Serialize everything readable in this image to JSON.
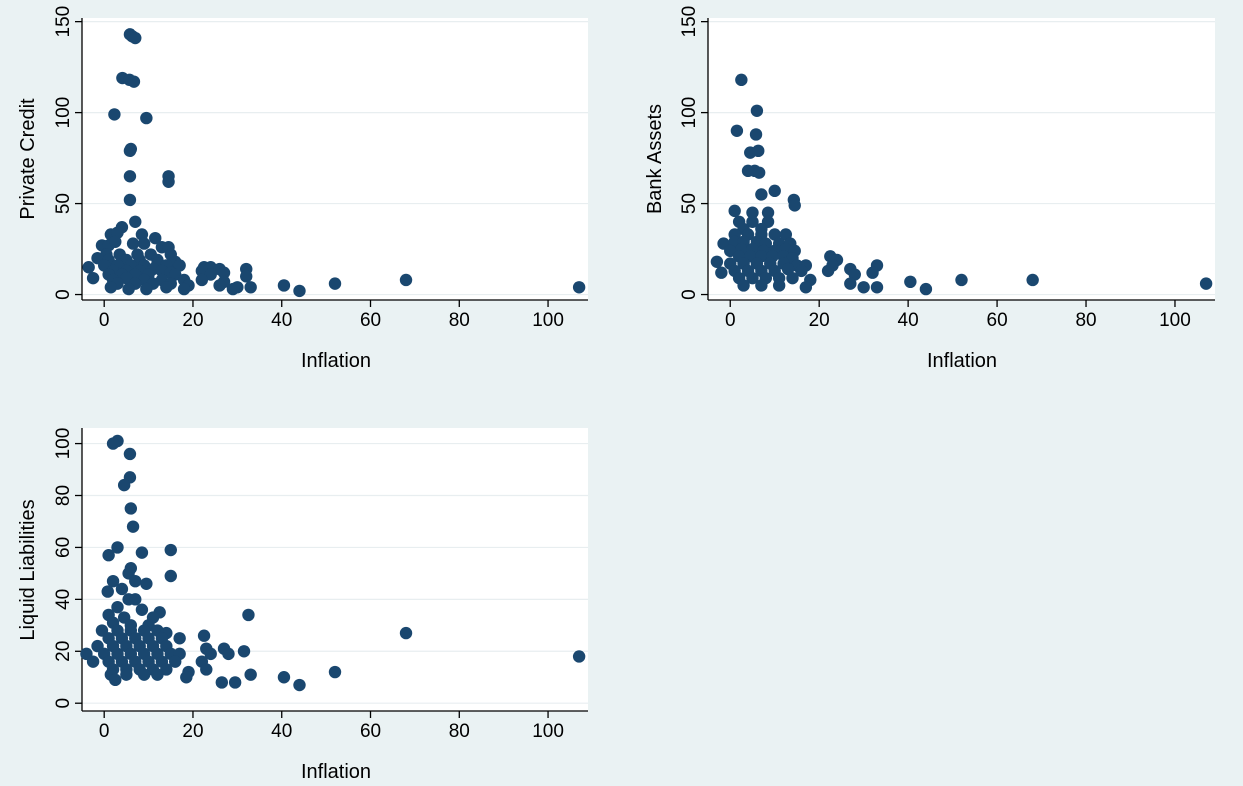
{
  "colors": {
    "background": "#eaf2f3",
    "plot_area": "#ffffff",
    "marker": "#1a476f",
    "grid": "#e8eef0"
  },
  "chart_data": [
    {
      "type": "scatter",
      "title": "",
      "xlabel": "Inflation",
      "ylabel": "Private Credit",
      "xlim": [
        -5,
        109
      ],
      "ylim": [
        -3,
        152
      ],
      "xticks": [
        0,
        20,
        40,
        60,
        80,
        100
      ],
      "yticks": [
        0,
        50,
        100,
        150
      ],
      "grid": true,
      "points": [
        [
          5.8,
          143
        ],
        [
          6.3,
          142
        ],
        [
          7,
          141
        ],
        [
          4.1,
          119
        ],
        [
          5.7,
          118
        ],
        [
          6.7,
          117
        ],
        [
          2.3,
          99
        ],
        [
          9.5,
          97
        ],
        [
          6,
          80
        ],
        [
          5.8,
          79
        ],
        [
          5.8,
          65
        ],
        [
          14.5,
          65
        ],
        [
          14.5,
          62
        ],
        [
          5.8,
          52
        ],
        [
          7,
          40
        ],
        [
          4,
          37
        ],
        [
          1.5,
          33
        ],
        [
          3,
          34
        ],
        [
          8.5,
          33
        ],
        [
          11.5,
          31
        ],
        [
          -0.5,
          27
        ],
        [
          1,
          27
        ],
        [
          2.5,
          29
        ],
        [
          6.5,
          28
        ],
        [
          9,
          28
        ],
        [
          13,
          26
        ],
        [
          14.5,
          26
        ],
        [
          0.5,
          22
        ],
        [
          3.5,
          22
        ],
        [
          7.5,
          22
        ],
        [
          10.5,
          22
        ],
        [
          15,
          22
        ],
        [
          -1.5,
          20
        ],
        [
          1,
          19
        ],
        [
          5,
          19
        ],
        [
          8,
          19
        ],
        [
          12,
          19
        ],
        [
          16,
          18
        ],
        [
          0,
          16
        ],
        [
          3,
          16
        ],
        [
          6,
          16
        ],
        [
          9,
          16
        ],
        [
          12,
          17
        ],
        [
          14,
          16
        ],
        [
          17,
          16
        ],
        [
          22.5,
          15
        ],
        [
          24,
          15
        ],
        [
          26,
          14
        ],
        [
          2,
          13
        ],
        [
          5,
          13
        ],
        [
          8,
          13
        ],
        [
          11,
          14
        ],
        [
          13,
          13
        ],
        [
          15,
          12
        ],
        [
          22,
          13
        ],
        [
          27,
          12
        ],
        [
          32,
          14
        ],
        [
          -3.5,
          15
        ],
        [
          1,
          11
        ],
        [
          4,
          11
        ],
        [
          7,
          11
        ],
        [
          10,
          11
        ],
        [
          16,
          11
        ],
        [
          24,
          11
        ],
        [
          32,
          10
        ],
        [
          -2.5,
          9
        ],
        [
          2,
          8
        ],
        [
          5,
          9
        ],
        [
          9,
          8
        ],
        [
          13,
          8
        ],
        [
          18,
          8
        ],
        [
          22,
          8
        ],
        [
          27,
          7
        ],
        [
          3,
          6
        ],
        [
          7,
          6
        ],
        [
          11,
          6
        ],
        [
          15,
          6
        ],
        [
          19,
          5
        ],
        [
          26,
          5
        ],
        [
          30,
          4
        ],
        [
          33,
          4
        ],
        [
          1.5,
          4
        ],
        [
          5.5,
          3
        ],
        [
          9.5,
          3
        ],
        [
          14,
          4
        ],
        [
          18,
          3
        ],
        [
          29,
          3
        ],
        [
          40.5,
          5
        ],
        [
          44,
          2
        ],
        [
          52,
          6
        ],
        [
          68,
          8
        ],
        [
          107,
          4
        ]
      ]
    },
    {
      "type": "scatter",
      "title": "",
      "xlabel": "Inflation",
      "ylabel": "Bank Assets",
      "xlim": [
        -5,
        109
      ],
      "ylim": [
        -3,
        152
      ],
      "xticks": [
        0,
        20,
        40,
        60,
        80,
        100
      ],
      "yticks": [
        0,
        50,
        100,
        150
      ],
      "grid": true,
      "points": [
        [
          2.5,
          118
        ],
        [
          6,
          101
        ],
        [
          1.5,
          90
        ],
        [
          5.8,
          88
        ],
        [
          4.5,
          78
        ],
        [
          6.3,
          79
        ],
        [
          5.5,
          68
        ],
        [
          4,
          68
        ],
        [
          6.5,
          67
        ],
        [
          10,
          57
        ],
        [
          7,
          55
        ],
        [
          14.3,
          52
        ],
        [
          14.5,
          49
        ],
        [
          1,
          46
        ],
        [
          5,
          45
        ],
        [
          8.5,
          45
        ],
        [
          2,
          40
        ],
        [
          5,
          40
        ],
        [
          8.5,
          40
        ],
        [
          3,
          36
        ],
        [
          7,
          36
        ],
        [
          1,
          33
        ],
        [
          4,
          33
        ],
        [
          7,
          33
        ],
        [
          10,
          33
        ],
        [
          12.5,
          33
        ],
        [
          -1.5,
          28
        ],
        [
          1,
          29
        ],
        [
          3,
          29
        ],
        [
          6,
          29
        ],
        [
          8,
          28
        ],
        [
          11,
          28
        ],
        [
          13.5,
          28
        ],
        [
          0,
          24
        ],
        [
          2.5,
          25
        ],
        [
          5,
          25
        ],
        [
          7.5,
          24
        ],
        [
          10,
          24
        ],
        [
          12.5,
          25
        ],
        [
          14.5,
          24
        ],
        [
          2,
          21
        ],
        [
          4.5,
          21
        ],
        [
          7,
          21
        ],
        [
          9.5,
          21
        ],
        [
          12,
          21
        ],
        [
          14,
          20
        ],
        [
          22.5,
          21
        ],
        [
          24,
          19
        ],
        [
          -3,
          18
        ],
        [
          0,
          17
        ],
        [
          3,
          17
        ],
        [
          6,
          17
        ],
        [
          9,
          17
        ],
        [
          12,
          17
        ],
        [
          15,
          16
        ],
        [
          17,
          16
        ],
        [
          23,
          16
        ],
        [
          27,
          14
        ],
        [
          33,
          16
        ],
        [
          -2,
          12
        ],
        [
          1,
          13
        ],
        [
          4,
          13
        ],
        [
          7,
          13
        ],
        [
          10,
          13
        ],
        [
          13,
          14
        ],
        [
          16,
          13
        ],
        [
          22,
          13
        ],
        [
          28,
          11
        ],
        [
          32,
          12
        ],
        [
          2,
          9
        ],
        [
          5,
          9
        ],
        [
          8,
          9
        ],
        [
          11,
          9
        ],
        [
          14,
          9
        ],
        [
          18,
          8
        ],
        [
          27,
          6
        ],
        [
          3,
          5
        ],
        [
          7,
          5
        ],
        [
          11,
          5
        ],
        [
          17,
          4
        ],
        [
          30,
          4
        ],
        [
          33,
          4
        ],
        [
          40.5,
          7
        ],
        [
          44,
          3
        ],
        [
          52,
          8
        ],
        [
          68,
          8
        ],
        [
          107,
          6
        ]
      ]
    },
    {
      "type": "scatter",
      "title": "",
      "xlabel": "Inflation",
      "ylabel": "Liquid Liabilities",
      "xlim": [
        -5,
        109
      ],
      "ylim": [
        -3,
        106
      ],
      "xticks": [
        0,
        20,
        40,
        60,
        80,
        100
      ],
      "yticks": [
        0,
        20,
        40,
        60,
        80,
        100
      ],
      "grid": true,
      "points": [
        [
          3,
          101
        ],
        [
          2,
          100
        ],
        [
          5.8,
          96
        ],
        [
          5.8,
          87
        ],
        [
          4.5,
          84
        ],
        [
          6,
          75
        ],
        [
          6.5,
          68
        ],
        [
          15,
          59
        ],
        [
          8.5,
          58
        ],
        [
          3,
          60
        ],
        [
          1,
          57
        ],
        [
          6,
          52
        ],
        [
          15,
          49
        ],
        [
          5.5,
          50
        ],
        [
          2,
          47
        ],
        [
          7,
          47
        ],
        [
          9.5,
          46
        ],
        [
          0.8,
          43
        ],
        [
          4,
          44
        ],
        [
          5.5,
          40
        ],
        [
          7,
          40
        ],
        [
          3,
          37
        ],
        [
          8.5,
          36
        ],
        [
          12.5,
          35
        ],
        [
          32.5,
          34
        ],
        [
          1,
          34
        ],
        [
          4.5,
          33
        ],
        [
          11,
          33
        ],
        [
          2,
          31
        ],
        [
          6,
          30
        ],
        [
          10,
          30
        ],
        [
          -0.5,
          28
        ],
        [
          3,
          28
        ],
        [
          6,
          28
        ],
        [
          9,
          28
        ],
        [
          12,
          28
        ],
        [
          14,
          27
        ],
        [
          22.5,
          26
        ],
        [
          1,
          25
        ],
        [
          4,
          25
        ],
        [
          7,
          25
        ],
        [
          10,
          25
        ],
        [
          13,
          25
        ],
        [
          17,
          25
        ],
        [
          -1.5,
          22
        ],
        [
          2,
          22
        ],
        [
          5,
          22
        ],
        [
          8,
          22
        ],
        [
          11,
          22
        ],
        [
          14,
          22
        ],
        [
          23,
          21
        ],
        [
          27,
          21
        ],
        [
          0,
          19
        ],
        [
          3,
          19
        ],
        [
          6,
          19
        ],
        [
          9,
          19
        ],
        [
          12,
          19
        ],
        [
          15,
          19
        ],
        [
          17,
          19
        ],
        [
          24,
          19
        ],
        [
          28,
          19
        ],
        [
          31.5,
          20
        ],
        [
          -4,
          19
        ],
        [
          -2.5,
          16
        ],
        [
          1,
          16
        ],
        [
          4,
          16
        ],
        [
          7,
          16
        ],
        [
          10,
          16
        ],
        [
          13,
          16
        ],
        [
          16,
          16
        ],
        [
          22,
          16
        ],
        [
          2,
          13
        ],
        [
          5,
          13
        ],
        [
          8,
          13
        ],
        [
          11,
          13
        ],
        [
          14,
          13
        ],
        [
          19,
          12
        ],
        [
          23,
          13
        ],
        [
          1.5,
          11
        ],
        [
          5,
          11
        ],
        [
          9,
          11
        ],
        [
          12,
          11
        ],
        [
          18.5,
          10
        ],
        [
          33,
          11
        ],
        [
          2.5,
          9
        ],
        [
          26.5,
          8
        ],
        [
          29.5,
          8
        ],
        [
          40.5,
          10
        ],
        [
          44,
          7
        ],
        [
          52,
          12
        ],
        [
          68,
          27
        ],
        [
          107,
          18
        ]
      ]
    }
  ]
}
